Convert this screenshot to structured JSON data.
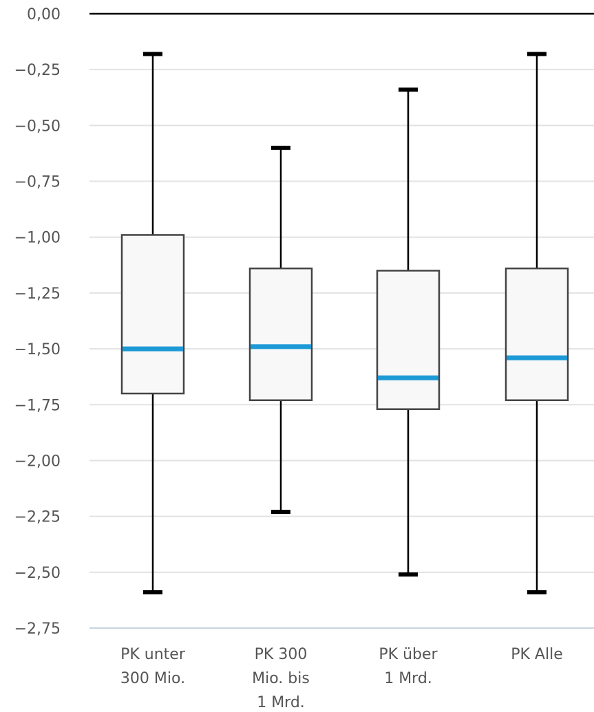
{
  "chart_data": {
    "type": "box",
    "title": "",
    "xlabel": "",
    "ylabel": "",
    "ylim": [
      -2.75,
      0.0
    ],
    "yticks": [
      0.0,
      -0.25,
      -0.5,
      -0.75,
      -1.0,
      -1.25,
      -1.5,
      -1.75,
      -2.0,
      -2.25,
      -2.5,
      -2.75
    ],
    "ytick_labels": [
      "0,00",
      "−0,25",
      "−0,50",
      "−0,75",
      "−1,00",
      "−1,25",
      "−1,50",
      "−1,75",
      "−2,00",
      "−2,25",
      "−2,50",
      "−2,75"
    ],
    "categories": [
      [
        "PK unter",
        "300 Mio."
      ],
      [
        "PK 300",
        "Mio. bis",
        "1 Mrd."
      ],
      [
        "PK über",
        "1 Mrd."
      ],
      [
        "PK Alle"
      ]
    ],
    "boxes": [
      {
        "whisker_max": -0.18,
        "q3": -0.99,
        "median": -1.5,
        "q1": -1.7,
        "whisker_min": -2.59
      },
      {
        "whisker_max": -0.6,
        "q3": -1.14,
        "median": -1.49,
        "q1": -1.73,
        "whisker_min": -2.23
      },
      {
        "whisker_max": -0.34,
        "q3": -1.15,
        "median": -1.63,
        "q1": -1.77,
        "whisker_min": -2.51
      },
      {
        "whisker_max": -0.18,
        "q3": -1.14,
        "median": -1.54,
        "q1": -1.73,
        "whisker_min": -2.59
      }
    ],
    "grid": true,
    "colors": {
      "median": "#1d9ad6",
      "box_fill": "#f8f8f8",
      "box_stroke": "#444444",
      "whisker": "#000000",
      "grid": "#e2e2e2"
    }
  }
}
